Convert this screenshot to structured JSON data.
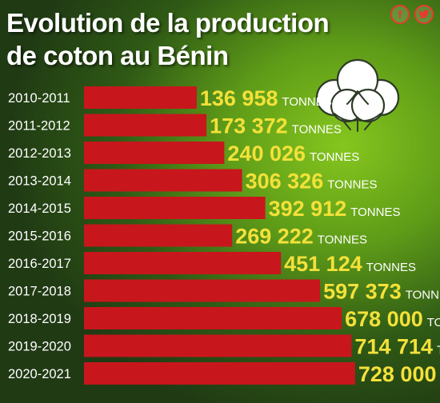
{
  "title_line1": "Evolution de la production",
  "title_line2": "de coton au Bénin",
  "social": {
    "facebook_glyph": "f",
    "twitter_glyph": "🐦"
  },
  "colors": {
    "bar": "#c8161d",
    "value": "#f3e13a",
    "label": "#ffffff",
    "title": "#ffffff"
  },
  "icons": [
    "facebook-icon",
    "twitter-icon",
    "cotton-boll-icon"
  ],
  "chart_data": {
    "type": "bar",
    "orientation": "horizontal",
    "categories": [
      "2010-2011",
      "2011-2012",
      "2012-2013",
      "2013-2014",
      "2014-2015",
      "2015-2016",
      "2016-2017",
      "2017-2018",
      "2018-2019",
      "2019-2020",
      "2020-2021"
    ],
    "values": [
      136958,
      173372,
      240026,
      306326,
      392912,
      269222,
      451124,
      597373,
      678000,
      714714,
      728000
    ],
    "value_labels": [
      "136 958",
      "173 372",
      "240 026",
      "306 326",
      "392 912",
      "269 222",
      "451 124",
      "597 373",
      "678 000",
      "714 714",
      "728 000"
    ],
    "unit": "TONNES"
  }
}
